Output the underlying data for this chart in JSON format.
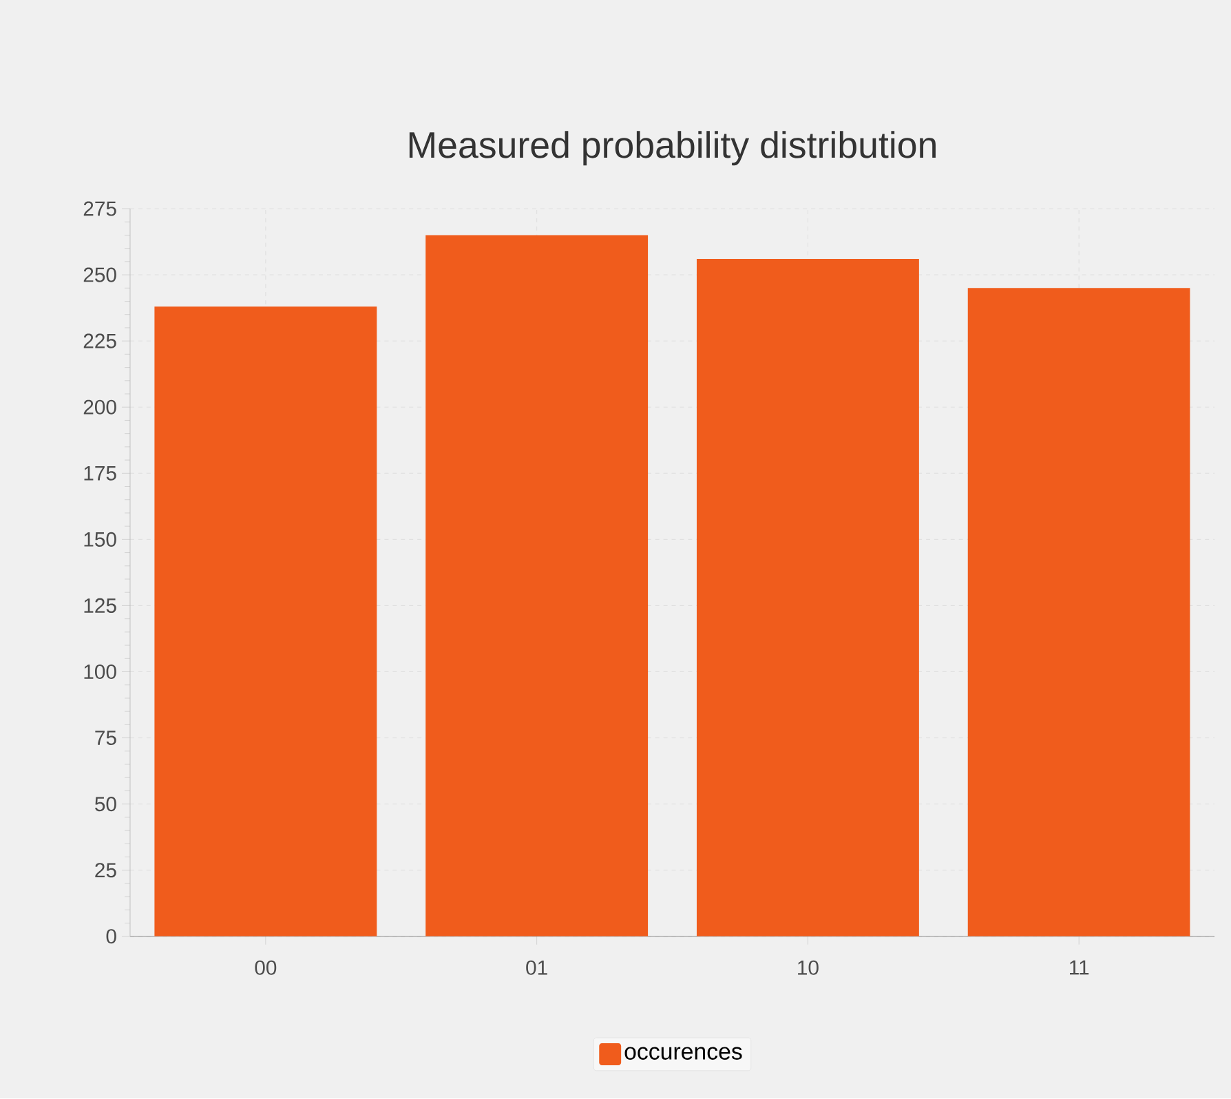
{
  "chart_data": {
    "type": "bar",
    "title": "Measured probability distribution",
    "categories": [
      "00",
      "01",
      "10",
      "11"
    ],
    "series": [
      {
        "name": "occurences",
        "color": "#f05c1c",
        "values": [
          238,
          265,
          256,
          245
        ]
      }
    ],
    "ylim": [
      0,
      275
    ],
    "yticks": [
      0,
      25,
      50,
      75,
      100,
      125,
      150,
      175,
      200,
      225,
      250,
      275
    ],
    "grid": true,
    "legend": "bottom"
  }
}
